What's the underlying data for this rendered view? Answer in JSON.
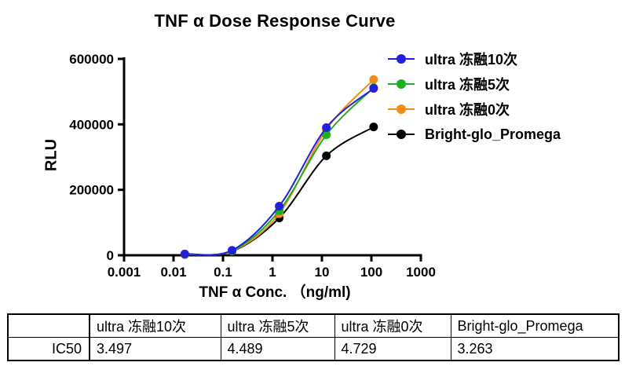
{
  "title": "TNF α Dose Response Curve",
  "chart_data": {
    "type": "line",
    "title": "TNF α Dose Response Curve",
    "xlabel": "TNF α Conc. （ng/ml)",
    "ylabel": "RLU",
    "x_scale": "log10",
    "xlim": [
      0.001,
      1000
    ],
    "ylim": [
      0,
      600000
    ],
    "x_ticks": [
      "0.001",
      "0.01",
      "0.1",
      "1",
      "10",
      "100",
      "1000"
    ],
    "y_ticks": [
      0,
      200000,
      400000,
      600000
    ],
    "grid": false,
    "legend_position": "right-top",
    "x": [
      0.0169,
      0.152,
      1.37,
      12.3,
      111
    ],
    "series": [
      {
        "name": "ultra 冻融10次",
        "color": "#2020dd",
        "values": [
          4000,
          15000,
          150000,
          390000,
          510000
        ]
      },
      {
        "name": "ultra 冻融5次",
        "color": "#1fb01f",
        "values": [
          3500,
          13500,
          136000,
          368000,
          512000
        ]
      },
      {
        "name": "ultra 冻融0次",
        "color": "#f28c1c",
        "values": [
          3000,
          13000,
          127000,
          384000,
          537000
        ]
      },
      {
        "name": "Bright-glo_Promega",
        "color": "#000000",
        "values": [
          2500,
          12000,
          114000,
          304000,
          392000
        ]
      }
    ]
  },
  "table": {
    "corner_label": "",
    "headers": [
      "ultra 冻融10次",
      "ultra 冻融5次",
      "ultra 冻融0次",
      "Bright-glo_Promega"
    ],
    "rows": [
      {
        "label": "IC50",
        "values": [
          "3.497",
          "4.489",
          "4.729",
          "3.263"
        ]
      }
    ]
  }
}
